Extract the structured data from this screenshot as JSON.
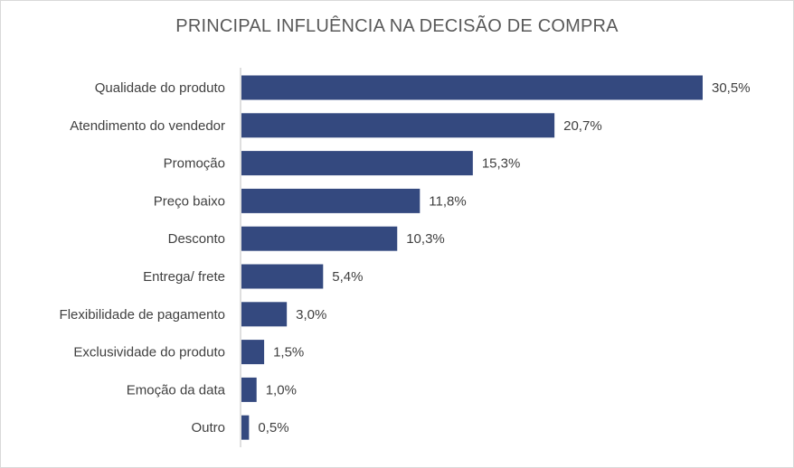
{
  "chart_data": {
    "type": "bar",
    "orientation": "horizontal",
    "title": "PRINCIPAL INFLUÊNCIA NA DECISÃO DE COMPRA",
    "xlabel": "",
    "ylabel": "",
    "categories": [
      "Qualidade do produto",
      "Atendimento do vendedor",
      "Promoção",
      "Preço baixo",
      "Desconto",
      "Entrega/ frete",
      "Flexibilidade de pagamento",
      "Exclusividade do produto",
      "Emoção da data",
      "Outro"
    ],
    "values": [
      30.5,
      20.7,
      15.3,
      11.8,
      10.3,
      5.4,
      3.0,
      1.5,
      1.0,
      0.5
    ],
    "value_labels": [
      "30,5%",
      "20,7%",
      "15,3%",
      "11,8%",
      "10,3%",
      "5,4%",
      "3,0%",
      "1,5%",
      "1,0%",
      "0,5%"
    ],
    "xlim": [
      0,
      30.5
    ],
    "grid": false,
    "legend": "none",
    "bar_color": "#34497f",
    "axis_color": "#bfbfbf"
  }
}
